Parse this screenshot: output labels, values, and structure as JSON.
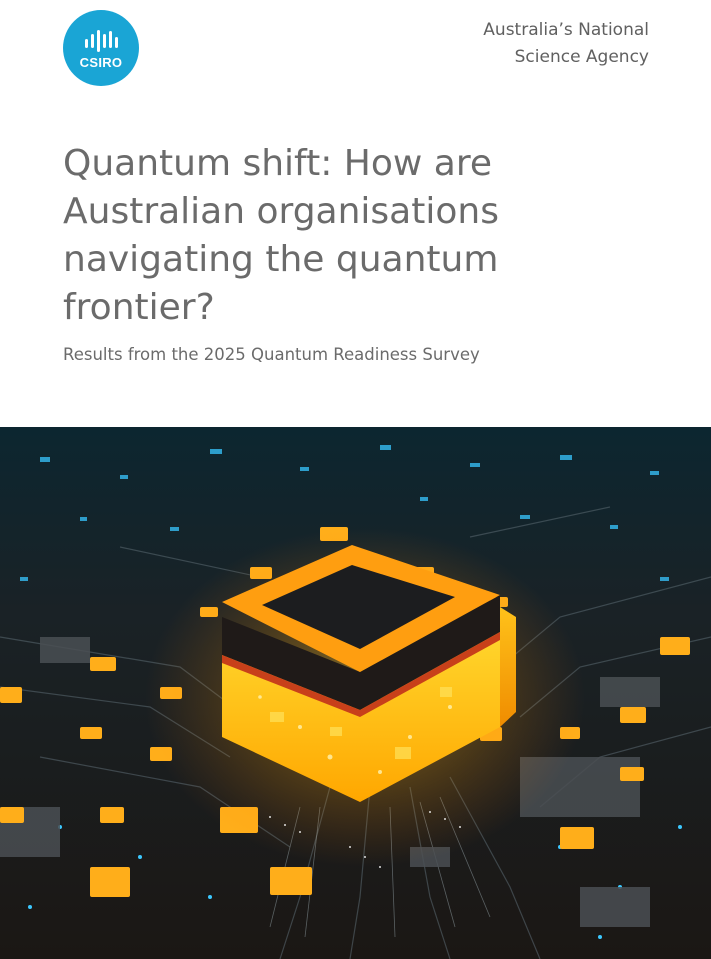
{
  "brand": {
    "logo_text": "CSIRO",
    "logo_color": "#1aa5d5",
    "tagline": [
      "Australia’s National",
      "Science Agency"
    ]
  },
  "document": {
    "title": "Quantum shift: How are Australian organisations navigating the quantum frontier?",
    "subtitle": "Results from the 2025 Quantum Readiness Survey"
  },
  "cover_image": {
    "icon": "quantum-chip-circuit-board-image",
    "accent_colors": [
      "#ffb300",
      "#ff8a00",
      "#38c6ff"
    ]
  }
}
